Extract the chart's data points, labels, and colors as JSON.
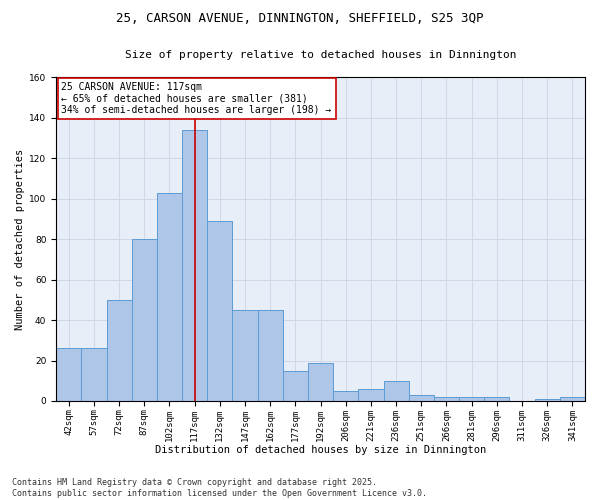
{
  "title_line1": "25, CARSON AVENUE, DINNINGTON, SHEFFIELD, S25 3QP",
  "title_line2": "Size of property relative to detached houses in Dinnington",
  "xlabel": "Distribution of detached houses by size in Dinnington",
  "ylabel": "Number of detached properties",
  "categories": [
    "42sqm",
    "57sqm",
    "72sqm",
    "87sqm",
    "102sqm",
    "117sqm",
    "132sqm",
    "147sqm",
    "162sqm",
    "177sqm",
    "192sqm",
    "206sqm",
    "221sqm",
    "236sqm",
    "251sqm",
    "266sqm",
    "281sqm",
    "296sqm",
    "311sqm",
    "326sqm",
    "341sqm"
  ],
  "values": [
    26,
    26,
    50,
    80,
    103,
    134,
    89,
    45,
    45,
    15,
    19,
    5,
    6,
    10,
    3,
    2,
    2,
    2,
    0,
    1,
    2
  ],
  "bar_color": "#aec6e8",
  "bar_edge_color": "#5b9bd5",
  "highlight_bar_index": 5,
  "highlight_line_color": "#cc0000",
  "annotation_line1": "25 CARSON AVENUE: 117sqm",
  "annotation_line2": "← 65% of detached houses are smaller (381)",
  "annotation_line3": "34% of semi-detached houses are larger (198) →",
  "annotation_box_color": "#ffffff",
  "annotation_box_edge_color": "#cc0000",
  "ylim": [
    0,
    160
  ],
  "yticks": [
    0,
    20,
    40,
    60,
    80,
    100,
    120,
    140,
    160
  ],
  "grid_color": "#d0d8e8",
  "bg_color": "#e8eef8",
  "footer_line1": "Contains HM Land Registry data © Crown copyright and database right 2025.",
  "footer_line2": "Contains public sector information licensed under the Open Government Licence v3.0.",
  "title_fontsize": 9,
  "subtitle_fontsize": 8,
  "axis_label_fontsize": 7.5,
  "tick_fontsize": 6.5,
  "annotation_fontsize": 7,
  "footer_fontsize": 6
}
